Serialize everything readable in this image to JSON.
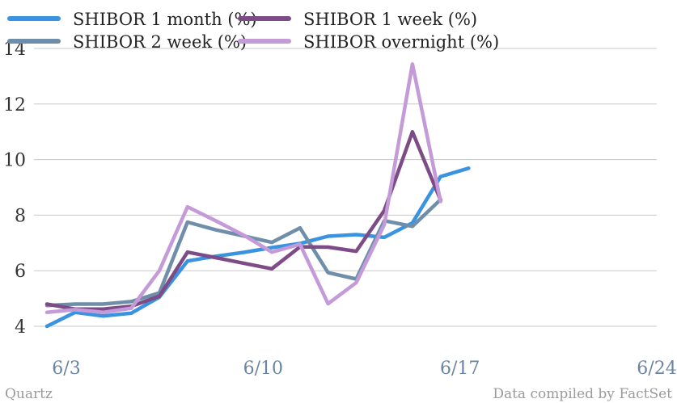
{
  "chart_data": {
    "type": "line",
    "title": "",
    "xlabel": "",
    "ylabel": "",
    "ylim": [
      4,
      14
    ],
    "yticks": [
      4,
      6,
      8,
      10,
      12,
      14
    ],
    "x_tick_labels": [
      "6/3",
      "6/10",
      "6/17",
      "6/24"
    ],
    "x_dates": [
      "6/3",
      "6/4",
      "6/5",
      "6/6",
      "6/7",
      "6/8",
      "6/9",
      "6/10",
      "6/11",
      "6/12",
      "6/13",
      "6/14",
      "6/15",
      "6/16",
      "6/17",
      "6/18",
      "6/19",
      "6/20",
      "6/21",
      "6/22",
      "6/23",
      "6/24"
    ],
    "grid": "horizontal",
    "legend_position": "top-left",
    "series": [
      {
        "name": "SHIBOR 1 month (%)",
        "color": "#3a93e0",
        "points": [
          [
            "6/3",
            4.0
          ],
          [
            "6/4",
            4.5
          ],
          [
            "6/5",
            4.37
          ],
          [
            "6/6",
            4.47
          ],
          [
            "6/7",
            5.05
          ],
          [
            "6/8",
            6.35
          ],
          [
            "6/9",
            6.52
          ],
          [
            "6/10",
            6.66
          ],
          [
            "6/11",
            6.83
          ],
          [
            "6/12",
            6.98
          ],
          [
            "6/13",
            7.24
          ],
          [
            "6/14",
            7.3
          ],
          [
            "6/15",
            7.2
          ],
          [
            "6/16",
            7.72
          ],
          [
            "6/17",
            9.39
          ],
          [
            "6/18",
            9.69
          ]
        ]
      },
      {
        "name": "SHIBOR 1 week (%)",
        "color": "#7d4b85",
        "points": [
          [
            "6/3",
            4.8
          ],
          [
            "6/4",
            4.62
          ],
          [
            "6/5",
            4.62
          ],
          [
            "6/6",
            4.72
          ],
          [
            "6/7",
            5.08
          ],
          [
            "6/8",
            6.67
          ],
          [
            "6/9",
            6.47
          ],
          [
            "6/10",
            6.27
          ],
          [
            "6/11",
            6.07
          ],
          [
            "6/12",
            6.86
          ],
          [
            "6/13",
            6.85
          ],
          [
            "6/14",
            6.7
          ],
          [
            "6/15",
            8.17
          ],
          [
            "6/16",
            11.0
          ],
          [
            "6/17",
            8.54
          ]
        ]
      },
      {
        "name": "SHIBOR 2 week (%)",
        "color": "#6f8ea9",
        "points": [
          [
            "6/3",
            4.75
          ],
          [
            "6/4",
            4.8
          ],
          [
            "6/5",
            4.8
          ],
          [
            "6/6",
            4.89
          ],
          [
            "6/7",
            5.2
          ],
          [
            "6/8",
            7.75
          ],
          [
            "6/9",
            7.47
          ],
          [
            "6/10",
            7.25
          ],
          [
            "6/11",
            7.02
          ],
          [
            "6/12",
            7.54
          ],
          [
            "6/13",
            5.93
          ],
          [
            "6/14",
            5.7
          ],
          [
            "6/15",
            7.8
          ],
          [
            "6/16",
            7.6
          ],
          [
            "6/17",
            8.56
          ]
        ]
      },
      {
        "name": "SHIBOR overnight (%)",
        "color": "#c49bd8",
        "points": [
          [
            "6/3",
            4.5
          ],
          [
            "6/4",
            4.6
          ],
          [
            "6/5",
            4.5
          ],
          [
            "6/6",
            4.65
          ],
          [
            "6/7",
            6.0
          ],
          [
            "6/8",
            8.3
          ],
          [
            "6/9",
            7.8
          ],
          [
            "6/10",
            7.28
          ],
          [
            "6/11",
            6.67
          ],
          [
            "6/12",
            6.95
          ],
          [
            "6/13",
            4.81
          ],
          [
            "6/14",
            5.57
          ],
          [
            "6/15",
            7.66
          ],
          [
            "6/16",
            13.44
          ],
          [
            "6/17",
            8.49
          ]
        ]
      }
    ]
  },
  "footer": {
    "left": "Quartz",
    "right": "Data compiled by FactSet"
  }
}
